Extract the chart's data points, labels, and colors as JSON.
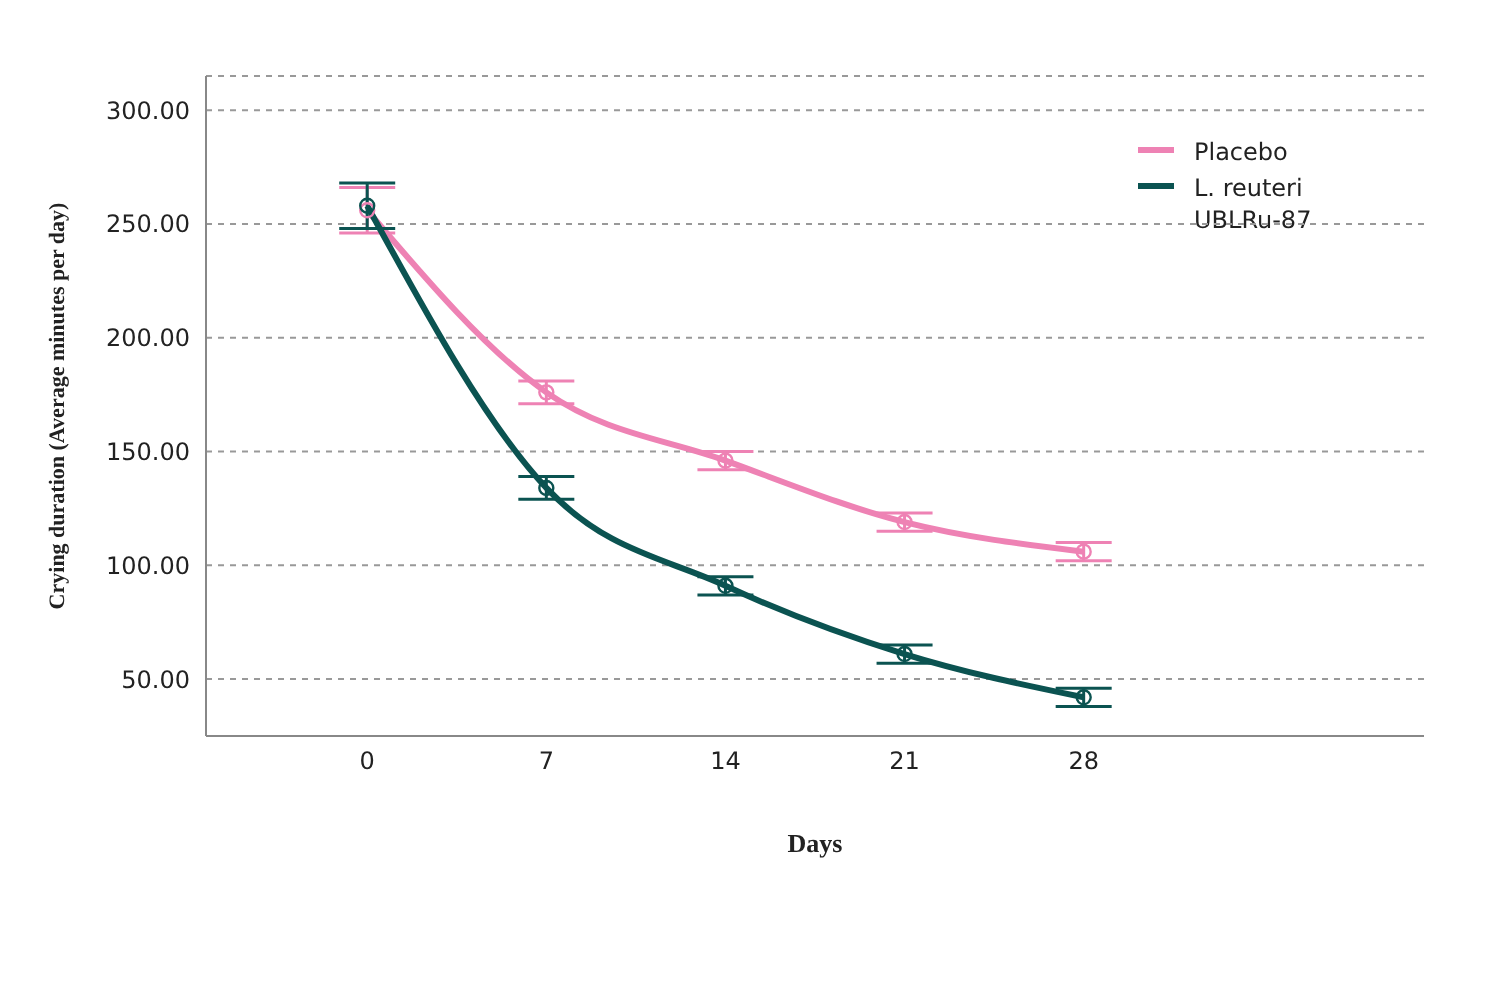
{
  "chart_data": {
    "type": "line",
    "xlabel": "Days",
    "ylabel": "Crying duration (Average minutes per day)",
    "categories": [
      "0",
      "7",
      "14",
      "21",
      "28"
    ],
    "series": [
      {
        "name": "Placebo",
        "color": "#ee82b4",
        "values": [
          256,
          176,
          146,
          119,
          106
        ],
        "errors": [
          10,
          5,
          4,
          4,
          4
        ]
      },
      {
        "name": "L. reuteri UBLRu-87",
        "color": "#0b5351",
        "values": [
          258,
          134,
          91,
          61,
          42
        ],
        "errors": [
          10,
          5,
          4,
          4,
          4
        ]
      }
    ],
    "ylim": [
      25,
      315
    ],
    "yticks": [
      {
        "value": 50,
        "label": "50.00"
      },
      {
        "value": 100,
        "label": "100.00"
      },
      {
        "value": 150,
        "label": "150.00"
      },
      {
        "value": 200,
        "label": "200.00"
      },
      {
        "value": 250,
        "label": "250.00"
      },
      {
        "value": 300,
        "label": "300.00"
      }
    ],
    "grid": "y",
    "legend": "top right",
    "marker": "circle",
    "line_style": "solid"
  }
}
